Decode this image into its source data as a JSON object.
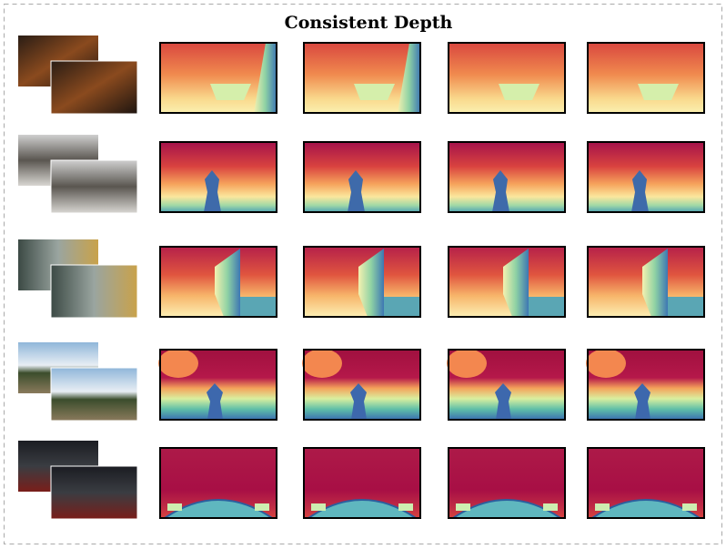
{
  "title": "Consistent Depth"
}
